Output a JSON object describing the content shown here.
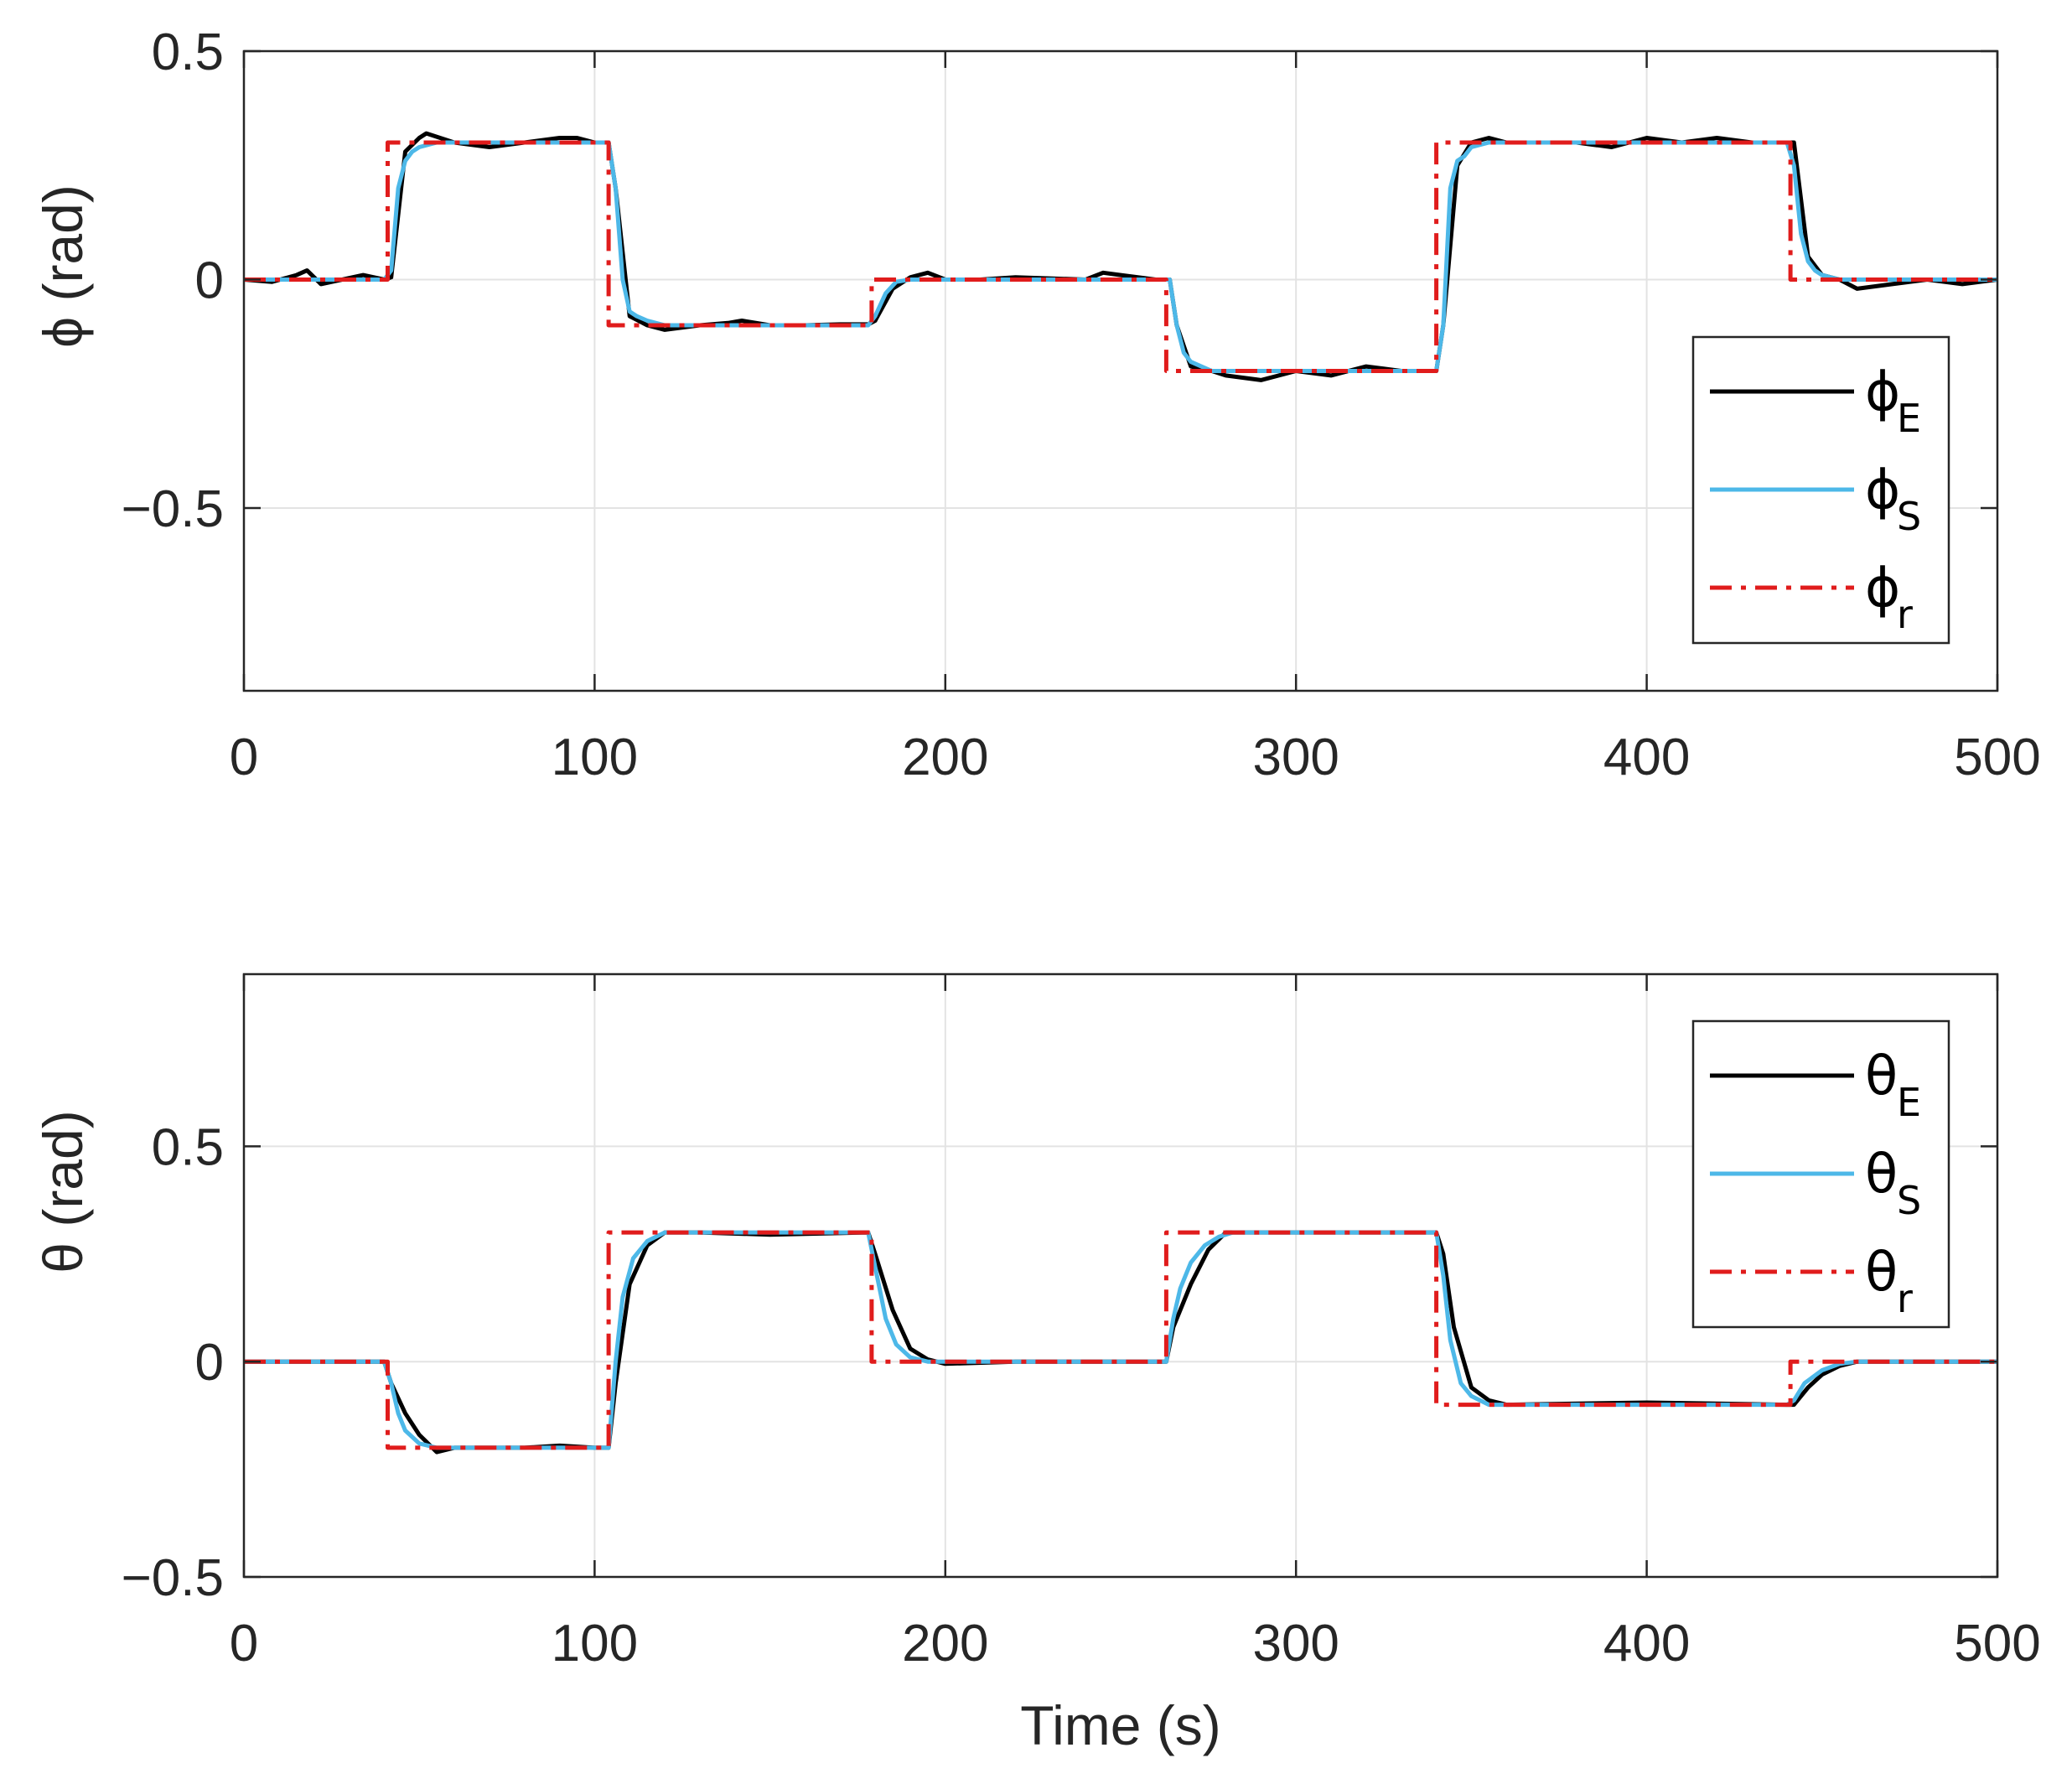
{
  "chart_data": [
    {
      "type": "line",
      "panel": "top",
      "title": "",
      "xlabel": "",
      "ylabel": "ϕ (rad)",
      "xlim": [
        0,
        500
      ],
      "ylim": [
        -0.9,
        0.5
      ],
      "xticks": [
        0,
        100,
        200,
        300,
        400,
        500
      ],
      "xtick_labels": [
        "0",
        "100",
        "200",
        "300",
        "400",
        "500"
      ],
      "yticks": [
        0.5,
        0,
        -0.5
      ],
      "ytick_labels": [
        "0.5",
        "0",
        "−0.5"
      ],
      "grid": true,
      "legend_position": "right",
      "series": [
        {
          "name": "ϕE",
          "legend_symbol": "ϕ",
          "legend_sub": "E",
          "color": "#000000",
          "style": "solid",
          "x": [
            0,
            8,
            15,
            18,
            22,
            28,
            34,
            40,
            42,
            46,
            50,
            52,
            60,
            70,
            80,
            90,
            95,
            100,
            104,
            106,
            110,
            115,
            120,
            130,
            138,
            142,
            150,
            160,
            170,
            178,
            180,
            185,
            190,
            195,
            200,
            210,
            220,
            240,
            245,
            250,
            260,
            264,
            266,
            270,
            276,
            280,
            290,
            300,
            310,
            320,
            330,
            340,
            342,
            346,
            350,
            355,
            360,
            370,
            380,
            390,
            400,
            410,
            420,
            430,
            440,
            442,
            446,
            450,
            455,
            460,
            470,
            480,
            490,
            500
          ],
          "y": [
            0,
            -0.005,
            0.01,
            0.02,
            -0.01,
            0.0,
            0.01,
            0.0,
            0.005,
            0.28,
            0.31,
            0.32,
            0.3,
            0.29,
            0.3,
            0.31,
            0.31,
            0.3,
            0.3,
            0.2,
            -0.08,
            -0.1,
            -0.11,
            -0.1,
            -0.095,
            -0.09,
            -0.1,
            -0.1,
            -0.098,
            -0.098,
            -0.09,
            -0.02,
            0.005,
            0.015,
            0.0,
            0.0,
            0.005,
            0.0,
            0.015,
            0.01,
            0.0,
            0.0,
            -0.1,
            -0.19,
            -0.2,
            -0.21,
            -0.22,
            -0.2,
            -0.21,
            -0.19,
            -0.2,
            -0.2,
            -0.1,
            0.25,
            0.3,
            0.31,
            0.3,
            0.3,
            0.3,
            0.29,
            0.31,
            0.3,
            0.31,
            0.3,
            0.3,
            0.3,
            0.05,
            0.01,
            0.0,
            -0.02,
            -0.01,
            0.0,
            -0.01,
            0.0
          ]
        },
        {
          "name": "ϕS",
          "legend_symbol": "ϕ",
          "legend_sub": "S",
          "color": "#4db8e8",
          "style": "solid",
          "x": [
            0,
            40,
            42,
            44,
            46,
            48,
            50,
            55,
            60,
            80,
            100,
            104,
            106,
            108,
            110,
            112,
            115,
            120,
            140,
            170,
            178,
            180,
            183,
            186,
            190,
            200,
            230,
            264,
            266,
            268,
            270,
            273,
            276,
            280,
            300,
            330,
            340,
            342,
            344,
            346,
            348,
            350,
            355,
            360,
            400,
            440,
            442,
            444,
            446,
            448,
            450,
            455,
            460,
            500
          ],
          "y": [
            0,
            0,
            0.02,
            0.2,
            0.26,
            0.28,
            0.29,
            0.3,
            0.3,
            0.3,
            0.3,
            0.3,
            0.2,
            0.0,
            -0.07,
            -0.08,
            -0.09,
            -0.1,
            -0.1,
            -0.1,
            -0.1,
            -0.08,
            -0.03,
            -0.005,
            0.0,
            0.0,
            0.0,
            0.0,
            -0.1,
            -0.16,
            -0.18,
            -0.19,
            -0.2,
            -0.2,
            -0.2,
            -0.2,
            -0.2,
            -0.1,
            0.2,
            0.26,
            0.27,
            0.29,
            0.3,
            0.3,
            0.3,
            0.3,
            0.25,
            0.1,
            0.04,
            0.02,
            0.01,
            0.0,
            0.0,
            0.0
          ]
        },
        {
          "name": "ϕr",
          "legend_symbol": "ϕ",
          "legend_sub": "r",
          "color": "#e01c1c",
          "style": "dashdot",
          "x": [
            0,
            41,
            41,
            104,
            104,
            179,
            179,
            263,
            263,
            340,
            340,
            441,
            441,
            500
          ],
          "y": [
            0,
            0,
            0.3,
            0.3,
            -0.1,
            -0.1,
            0,
            0,
            -0.2,
            -0.2,
            0.3,
            0.3,
            0,
            0
          ]
        }
      ]
    },
    {
      "type": "line",
      "panel": "bottom",
      "title": "",
      "xlabel": "Time (s)",
      "ylabel": "θ (rad)",
      "xlim": [
        0,
        500
      ],
      "ylim": [
        -0.5,
        0.9
      ],
      "xticks": [
        0,
        100,
        200,
        300,
        400,
        500
      ],
      "xtick_labels": [
        "0",
        "100",
        "200",
        "300",
        "400",
        "500"
      ],
      "yticks": [
        0.5,
        0,
        -0.5
      ],
      "ytick_labels": [
        "0.5",
        "0",
        "−0.5"
      ],
      "grid": true,
      "legend_position": "top-right",
      "series": [
        {
          "name": "θE",
          "legend_symbol": "θ",
          "legend_sub": "E",
          "color": "#000000",
          "style": "solid",
          "x": [
            0,
            30,
            40,
            42,
            46,
            50,
            55,
            60,
            80,
            90,
            100,
            104,
            106,
            110,
            115,
            120,
            130,
            150,
            178,
            180,
            185,
            190,
            195,
            200,
            220,
            263,
            265,
            270,
            275,
            280,
            300,
            340,
            342,
            345,
            350,
            355,
            360,
            400,
            440,
            442,
            446,
            450,
            455,
            460,
            500
          ],
          "y": [
            0,
            0,
            0,
            -0.05,
            -0.12,
            -0.17,
            -0.21,
            -0.2,
            -0.2,
            -0.195,
            -0.2,
            -0.2,
            -0.05,
            0.18,
            0.27,
            0.3,
            0.3,
            0.295,
            0.3,
            0.25,
            0.12,
            0.03,
            0.005,
            -0.005,
            0.0,
            0.0,
            0.08,
            0.18,
            0.26,
            0.3,
            0.3,
            0.3,
            0.25,
            0.08,
            -0.06,
            -0.09,
            -0.1,
            -0.095,
            -0.1,
            -0.1,
            -0.06,
            -0.03,
            -0.01,
            0.0,
            0.0
          ]
        },
        {
          "name": "θS",
          "legend_symbol": "θ",
          "legend_sub": "S",
          "color": "#4db8e8",
          "style": "solid",
          "x": [
            0,
            40,
            42,
            44,
            46,
            50,
            55,
            60,
            100,
            104,
            106,
            108,
            111,
            115,
            120,
            125,
            178,
            180,
            183,
            186,
            190,
            195,
            263,
            265,
            267,
            270,
            274,
            278,
            282,
            340,
            342,
            344,
            347,
            350,
            355,
            360,
            440,
            442,
            445,
            450,
            455,
            460,
            500
          ],
          "y": [
            0,
            0,
            -0.05,
            -0.12,
            -0.16,
            -0.19,
            -0.2,
            -0.2,
            -0.2,
            -0.2,
            0.0,
            0.15,
            0.24,
            0.28,
            0.3,
            0.3,
            0.3,
            0.22,
            0.1,
            0.04,
            0.01,
            0.0,
            0.0,
            0.1,
            0.17,
            0.23,
            0.27,
            0.29,
            0.3,
            0.3,
            0.2,
            0.05,
            -0.05,
            -0.08,
            -0.1,
            -0.1,
            -0.1,
            -0.09,
            -0.05,
            -0.02,
            -0.005,
            0.0,
            0.0
          ]
        },
        {
          "name": "θr",
          "legend_symbol": "θ",
          "legend_sub": "r",
          "color": "#e01c1c",
          "style": "dashdot",
          "x": [
            0,
            41,
            41,
            104,
            104,
            179,
            179,
            263,
            263,
            340,
            340,
            441,
            441,
            500
          ],
          "y": [
            0,
            0,
            -0.2,
            -0.2,
            0.3,
            0.3,
            0,
            0,
            0.3,
            0.3,
            -0.1,
            -0.1,
            0,
            0
          ]
        }
      ]
    }
  ]
}
